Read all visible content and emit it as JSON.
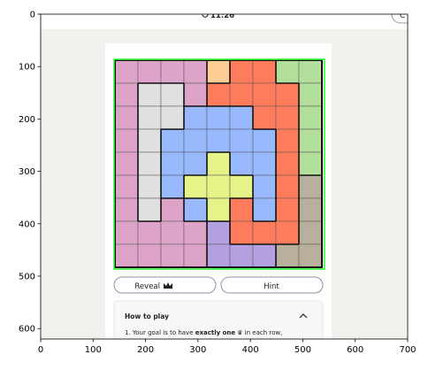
{
  "status_bar": {
    "time": "11:26",
    "clock_icon": "clock-icon",
    "corner_glyph": "C"
  },
  "axes": {
    "x_ticks": [
      "0",
      "100",
      "200",
      "300",
      "400",
      "500",
      "600",
      "700"
    ],
    "y_ticks": [
      "0",
      "100",
      "200",
      "300",
      "400",
      "500",
      "600"
    ]
  },
  "puzzle": {
    "rows": 9,
    "cols": 9,
    "colors": {
      "P": "#dea3c8",
      "O": "#fecd94",
      "R": "#fe7c5c",
      "G": "#b3de9b",
      "W": "#e0e0e0",
      "B": "#98b9fd",
      "Y": "#e6f389",
      "V": "#b3a0e0",
      "T": "#b8b09d"
    },
    "grid": [
      "PPPPORRGG",
      "PWWPRRRRG",
      "PWWBBBRRG",
      "PWBBBBBRG",
      "PWBBYBBRG",
      "PWBYYYBRT",
      "PWPBYRBRT",
      "PPPPVRRRT",
      "PPPPVVVTT"
    ],
    "selection_color": "#33ff33"
  },
  "buttons": {
    "reveal": {
      "label": "Reveal",
      "icon": "crown-icon"
    },
    "hint": {
      "label": "Hint"
    }
  },
  "how_to_play": {
    "title": "How to play",
    "collapse_icon": "chevron-up-icon",
    "rule_prefix": "1. Your goal is to have ",
    "rule_bold": "exactly one",
    "rule_suffix": " in each row,"
  }
}
